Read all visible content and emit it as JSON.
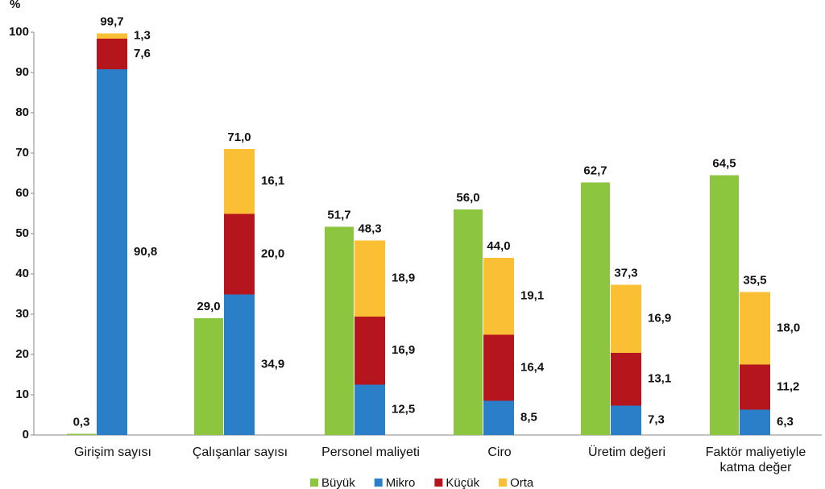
{
  "chart_data": {
    "type": "grouped-stacked-bar",
    "y_label": "%",
    "categories": [
      "Girişim sayısı",
      "Çalışanlar sayısı",
      "Personel maliyeti",
      "Ciro",
      "Üretim değeri",
      "Faktör maliyetiyle katma değer"
    ],
    "series": [
      {
        "name": "Büyük",
        "color": "#8cc63f",
        "stack": "a",
        "values": [
          0.3,
          29.0,
          51.7,
          56.0,
          62.7,
          64.5
        ],
        "value_labels": [
          "0,3",
          "29,0",
          "51,7",
          "56,0",
          "62,7",
          "64,5"
        ]
      },
      {
        "name": "Mikro",
        "color": "#2b7fc8",
        "stack": "b",
        "values": [
          90.8,
          34.9,
          12.5,
          8.5,
          7.3,
          6.3
        ],
        "value_labels": [
          "90,8",
          "34,9",
          "12,5",
          "8,5",
          "7,3",
          "6,3"
        ]
      },
      {
        "name": "Küçük",
        "color": "#b5161e",
        "stack": "b",
        "values": [
          7.6,
          20.0,
          16.9,
          16.4,
          13.1,
          11.2
        ],
        "value_labels": [
          "7,6",
          "20,0",
          "16,9",
          "16,4",
          "13,1",
          "11,2"
        ]
      },
      {
        "name": "Orta",
        "color": "#fbbf35",
        "stack": "b",
        "values": [
          1.3,
          16.1,
          18.9,
          19.1,
          16.9,
          18.0
        ],
        "value_labels": [
          "1,3",
          "16,1",
          "18,9",
          "19,1",
          "16,9",
          "18,0"
        ]
      }
    ],
    "totals": {
      "values": [
        99.7,
        71.0,
        48.3,
        44.0,
        37.3,
        35.5
      ],
      "value_labels": [
        "99,7",
        "71,0",
        "48,3",
        "44,0",
        "37,3",
        "35,5"
      ]
    },
    "ylim": [
      0,
      100
    ],
    "yticks": [
      0,
      10,
      20,
      30,
      40,
      50,
      60,
      70,
      80,
      90,
      100
    ],
    "grid": false,
    "legend": "bottom"
  }
}
